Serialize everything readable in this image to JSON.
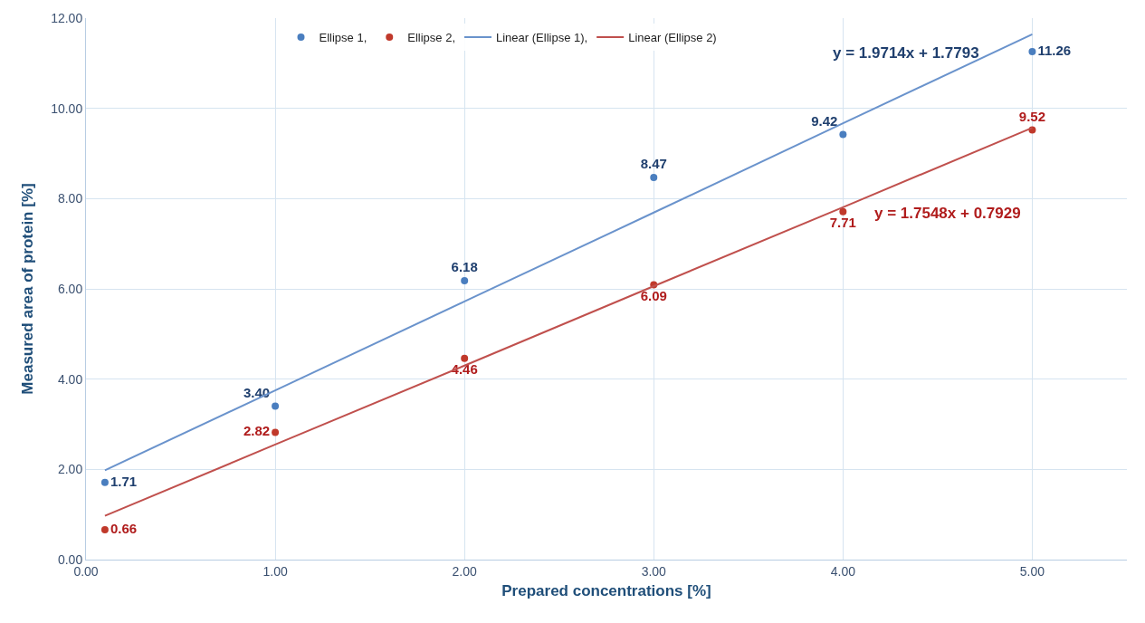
{
  "chart_data": {
    "type": "scatter",
    "xlabel": "Prepared concentrations [%]",
    "ylabel": "Measured area of protein [%]",
    "x": [
      0.1,
      1,
      2,
      3,
      4,
      5
    ],
    "series": [
      {
        "name": "Ellipse 1,",
        "color": "#4a7ebf",
        "values": [
          1.71,
          3.4,
          6.18,
          8.47,
          9.42,
          11.26
        ],
        "value_labels": [
          "1.71",
          "3.40",
          "6.18",
          "8.47",
          "9.42",
          "11.26"
        ]
      },
      {
        "name": "Ellipse 2,",
        "color": "#c0392b",
        "values": [
          0.66,
          2.82,
          4.46,
          6.09,
          7.71,
          9.52
        ],
        "value_labels": [
          "0.66",
          "2.82",
          "4.46",
          "6.09",
          "7.71",
          "9.52"
        ]
      },
      {
        "name": "Linear (Ellipse 1),",
        "type": "line",
        "color": "#6a93cc",
        "values": [
          1.98,
          3.75,
          5.72,
          7.69,
          9.67,
          11.64
        ],
        "marker": "none"
      },
      {
        "name": "Linear (Ellipse 2)",
        "type": "line",
        "color": "#c0504d",
        "values": [
          0.97,
          2.55,
          4.3,
          6.06,
          7.81,
          9.57
        ],
        "marker": "none"
      }
    ],
    "annotations": [
      "y = 1.9714x + 1.7793",
      "y = 1.7548x + 0.7929"
    ],
    "xlim": [
      0,
      5.5
    ],
    "xticks": [
      {
        "value": 0,
        "label": "0.00"
      },
      {
        "value": 1,
        "label": "1.00"
      },
      {
        "value": 2,
        "label": "2.00"
      },
      {
        "value": 3,
        "label": "3.00"
      },
      {
        "value": 4,
        "label": "4.00"
      },
      {
        "value": 5,
        "label": "5.00"
      }
    ],
    "ylim": [
      0,
      12
    ],
    "yticks": [
      {
        "value": 0,
        "label": "0.00"
      },
      {
        "value": 2,
        "label": "2.00"
      },
      {
        "value": 4,
        "label": "4.00"
      },
      {
        "value": 6,
        "label": "6.00"
      },
      {
        "value": 8,
        "label": "8.00"
      },
      {
        "value": 10,
        "label": "10.00"
      },
      {
        "value": 12,
        "label": "12.00"
      }
    ],
    "grid": true,
    "legend": "top",
    "marker": "circle"
  }
}
